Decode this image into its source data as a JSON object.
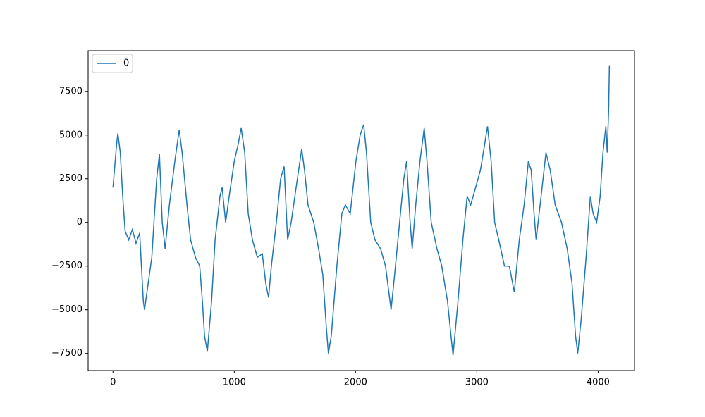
{
  "chart_data": {
    "type": "line",
    "series": [
      {
        "name": "0",
        "color": "#1f77b4",
        "x": [
          0,
          30,
          40,
          60,
          80,
          100,
          130,
          160,
          190,
          220,
          250,
          260,
          320,
          360,
          383,
          406,
          430,
          465,
          510,
          546,
          570,
          610,
          640,
          680,
          715,
          737,
          755,
          778,
          813,
          842,
          882,
          900,
          929,
          958,
          1000,
          1033,
          1057,
          1086,
          1115,
          1150,
          1190,
          1231,
          1260,
          1283,
          1306,
          1347,
          1382,
          1411,
          1440,
          1469,
          1510,
          1556,
          1579,
          1608,
          1655,
          1695,
          1730,
          1759,
          1776,
          1800,
          1846,
          1887,
          1916,
          1956,
          2003,
          2038,
          2067,
          2090,
          2125,
          2160,
          2206,
          2247,
          2293,
          2322,
          2363,
          2398,
          2421,
          2450,
          2467,
          2496,
          2531,
          2566,
          2589,
          2624,
          2671,
          2711,
          2758,
          2787,
          2804,
          2845,
          2885,
          2920,
          2949,
          2990,
          3030,
          3065,
          3088,
          3118,
          3147,
          3181,
          3228,
          3268,
          3309,
          3350,
          3390,
          3425,
          3448,
          3472,
          3489,
          3530,
          3570,
          3605,
          3646,
          3698,
          3745,
          3785,
          3814,
          3832,
          3861,
          3901,
          3936,
          3959,
          3988,
          4017,
          4040,
          4064,
          4075,
          4087,
          4093
        ],
        "values": [
          2000,
          4500,
          5100,
          4000,
          1500,
          -500,
          -1000,
          -400,
          -1200,
          -600,
          -4500,
          -5000,
          -2000,
          2500,
          3900,
          0,
          -1500,
          1000,
          3500,
          5300,
          4000,
          1000,
          -1000,
          -2000,
          -2500,
          -4500,
          -6500,
          -7400,
          -4500,
          -1000,
          1500,
          2000,
          0,
          1500,
          3500,
          4500,
          5400,
          4000,
          500,
          -1000,
          -2000,
          -1800,
          -3500,
          -4300,
          -2500,
          0,
          2500,
          3200,
          -1000,
          0,
          2000,
          4200,
          3000,
          1000,
          0,
          -1500,
          -3000,
          -6000,
          -7500,
          -6500,
          -2500,
          500,
          1000,
          500,
          3500,
          5000,
          5600,
          4000,
          0,
          -1000,
          -1500,
          -2500,
          -5000,
          -3000,
          0,
          2500,
          3500,
          0,
          -1500,
          1000,
          3500,
          5400,
          3500,
          0,
          -1500,
          -2500,
          -4500,
          -6500,
          -7600,
          -4500,
          -1000,
          1500,
          1000,
          2000,
          3000,
          4500,
          5500,
          3500,
          0,
          -1000,
          -2500,
          -2500,
          -4000,
          -1000,
          1000,
          3500,
          3000,
          500,
          -1000,
          1500,
          4000,
          3000,
          1000,
          0,
          -1500,
          -3500,
          -6500,
          -7500,
          -5500,
          -2000,
          1500,
          500,
          0,
          1500,
          4000,
          5500,
          4000,
          6500,
          9000
        ]
      }
    ],
    "xlim": [
      -205,
      4300
    ],
    "ylim": [
      -8480,
      9830
    ],
    "xticks": [
      0,
      1000,
      2000,
      3000,
      4000
    ],
    "yticks": [
      {
        "value": -7500,
        "label": "−7500"
      },
      {
        "value": -5000,
        "label": "−5000"
      },
      {
        "value": -2500,
        "label": "−2500"
      },
      0,
      2500,
      5000,
      7500
    ],
    "legend": "upper left"
  }
}
